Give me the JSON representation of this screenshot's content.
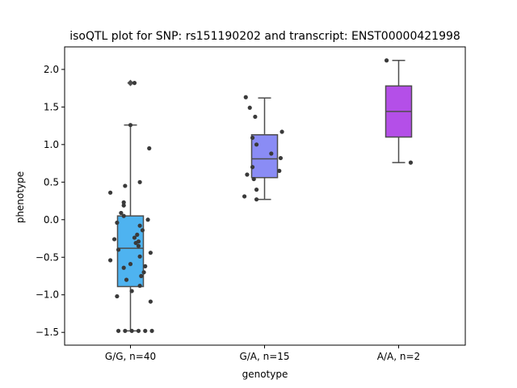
{
  "chart_data": {
    "type": "box",
    "title": "isoQTL plot for SNP: rs151190202 and transcript: ENST00000421998",
    "xlabel": "genotype",
    "ylabel": "phenotype",
    "ylim": [
      -1.67,
      2.3
    ],
    "yticks": [
      {
        "value": -1.5,
        "label": "−1.5"
      },
      {
        "value": -1.0,
        "label": "−1.0"
      },
      {
        "value": -0.5,
        "label": "−0.5"
      },
      {
        "value": 0.0,
        "label": "0.0"
      },
      {
        "value": 0.5,
        "label": "0.5"
      },
      {
        "value": 1.0,
        "label": "1.0"
      },
      {
        "value": 1.5,
        "label": "1.5"
      },
      {
        "value": 2.0,
        "label": "2.0"
      }
    ],
    "grid": false,
    "categories": [
      "G/G, n=40",
      "G/A, n=15",
      "A/A, n=2"
    ],
    "boxes": [
      {
        "category": "G/G, n=40",
        "color": "#4eb3f0",
        "q1": -0.89,
        "median": -0.38,
        "q3": 0.05,
        "whisker_low": -1.48,
        "whisker_high": 1.26,
        "outliers": [
          1.82
        ]
      },
      {
        "category": "G/A, n=15",
        "color": "#8a8cf5",
        "q1": 0.56,
        "median": 0.81,
        "q3": 1.13,
        "whisker_low": 0.27,
        "whisker_high": 1.62,
        "outliers": []
      },
      {
        "category": "A/A, n=2",
        "color": "#b44fe8",
        "q1": 1.1,
        "median": 1.44,
        "q3": 1.78,
        "whisker_low": 0.76,
        "whisker_high": 2.12,
        "outliers": []
      }
    ],
    "points": [
      {
        "x": 0.03,
        "y": 1.82
      },
      {
        "x": 0.0,
        "y": 1.26
      },
      {
        "x": 0.14,
        "y": 0.95
      },
      {
        "x": 0.07,
        "y": 0.5
      },
      {
        "x": -0.04,
        "y": 0.45
      },
      {
        "x": -0.15,
        "y": 0.36
      },
      {
        "x": -0.05,
        "y": 0.23
      },
      {
        "x": -0.05,
        "y": 0.19
      },
      {
        "x": -0.07,
        "y": 0.09
      },
      {
        "x": -0.05,
        "y": 0.05
      },
      {
        "x": 0.13,
        "y": 0.0
      },
      {
        "x": -0.1,
        "y": -0.04
      },
      {
        "x": 0.07,
        "y": -0.08
      },
      {
        "x": 0.09,
        "y": -0.14
      },
      {
        "x": 0.05,
        "y": -0.2
      },
      {
        "x": 0.03,
        "y": -0.24
      },
      {
        "x": 0.06,
        "y": -0.29
      },
      {
        "x": -0.12,
        "y": -0.26
      },
      {
        "x": 0.04,
        "y": -0.31
      },
      {
        "x": 0.06,
        "y": -0.35
      },
      {
        "x": -0.09,
        "y": -0.4
      },
      {
        "x": 0.15,
        "y": -0.44
      },
      {
        "x": 0.07,
        "y": -0.49
      },
      {
        "x": -0.15,
        "y": -0.54
      },
      {
        "x": 0.0,
        "y": -0.59
      },
      {
        "x": 0.11,
        "y": -0.62
      },
      {
        "x": -0.05,
        "y": -0.64
      },
      {
        "x": 0.1,
        "y": -0.7
      },
      {
        "x": 0.08,
        "y": -0.75
      },
      {
        "x": -0.03,
        "y": -0.8
      },
      {
        "x": 0.07,
        "y": -0.88
      },
      {
        "x": 0.01,
        "y": -0.95
      },
      {
        "x": -0.1,
        "y": -1.02
      },
      {
        "x": 0.15,
        "y": -1.09
      },
      {
        "x": -0.09,
        "y": -1.48
      },
      {
        "x": -0.04,
        "y": -1.48
      },
      {
        "x": 0.01,
        "y": -1.48
      },
      {
        "x": 0.06,
        "y": -1.48
      },
      {
        "x": 0.11,
        "y": -1.48
      },
      {
        "x": 0.16,
        "y": -1.48
      },
      {
        "x": 0.86,
        "y": 1.63
      },
      {
        "x": 0.89,
        "y": 1.49
      },
      {
        "x": 0.93,
        "y": 1.37
      },
      {
        "x": 1.13,
        "y": 1.17
      },
      {
        "x": 0.91,
        "y": 1.09
      },
      {
        "x": 0.94,
        "y": 1.0
      },
      {
        "x": 1.05,
        "y": 0.88
      },
      {
        "x": 1.12,
        "y": 0.82
      },
      {
        "x": 0.91,
        "y": 0.7
      },
      {
        "x": 1.11,
        "y": 0.65
      },
      {
        "x": 0.87,
        "y": 0.6
      },
      {
        "x": 0.92,
        "y": 0.54
      },
      {
        "x": 0.94,
        "y": 0.4
      },
      {
        "x": 0.85,
        "y": 0.31
      },
      {
        "x": 0.94,
        "y": 0.27
      },
      {
        "x": 1.91,
        "y": 2.12
      },
      {
        "x": 2.09,
        "y": 0.76
      }
    ]
  }
}
